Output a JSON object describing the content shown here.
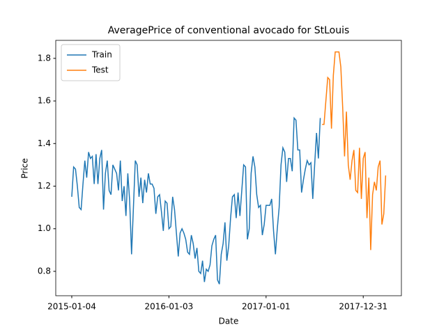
{
  "chart_data": {
    "type": "line",
    "title": "AveragePrice of conventional avocado for StLouis",
    "xlabel": "Date",
    "ylabel": "Price",
    "xlim": [
      "2014-11-05",
      "2018-05-23"
    ],
    "xticks": [
      "2015-01-04",
      "2016-01-03",
      "2017-01-01",
      "2017-12-31"
    ],
    "ylim": [
      0.6855,
      1.8845
    ],
    "yticks": [
      0.8,
      {
        "value": 1,
        "label": "1.0"
      },
      1.2,
      1.4,
      1.6,
      1.8
    ],
    "legend": "upper left",
    "series": [
      {
        "name": "Train",
        "color": "#1f77b4",
        "x": [
          "2015-01-04",
          "2015-01-11",
          "2015-01-18",
          "2015-01-25",
          "2015-02-01",
          "2015-02-08",
          "2015-02-15",
          "2015-02-22",
          "2015-03-01",
          "2015-03-08",
          "2015-03-15",
          "2015-03-22",
          "2015-03-29",
          "2015-04-05",
          "2015-04-12",
          "2015-04-19",
          "2015-04-26",
          "2015-05-03",
          "2015-05-10",
          "2015-05-17",
          "2015-05-24",
          "2015-05-31",
          "2015-06-07",
          "2015-06-14",
          "2015-06-21",
          "2015-06-28",
          "2015-07-05",
          "2015-07-12",
          "2015-07-19",
          "2015-07-26",
          "2015-08-02",
          "2015-08-09",
          "2015-08-16",
          "2015-08-23",
          "2015-08-30",
          "2015-09-06",
          "2015-09-13",
          "2015-09-20",
          "2015-09-27",
          "2015-10-04",
          "2015-10-11",
          "2015-10-18",
          "2015-10-25",
          "2015-11-01",
          "2015-11-08",
          "2015-11-15",
          "2015-11-22",
          "2015-11-29",
          "2015-12-06",
          "2015-12-13",
          "2015-12-20",
          "2015-12-27",
          "2016-01-03",
          "2016-01-10",
          "2016-01-17",
          "2016-01-24",
          "2016-01-31",
          "2016-02-07",
          "2016-02-14",
          "2016-02-21",
          "2016-02-28",
          "2016-03-06",
          "2016-03-13",
          "2016-03-20",
          "2016-03-27",
          "2016-04-03",
          "2016-04-10",
          "2016-04-17",
          "2016-04-24",
          "2016-05-01",
          "2016-05-08",
          "2016-05-15",
          "2016-05-22",
          "2016-05-29",
          "2016-06-05",
          "2016-06-12",
          "2016-06-19",
          "2016-06-26",
          "2016-07-03",
          "2016-07-10",
          "2016-07-17",
          "2016-07-24",
          "2016-07-31",
          "2016-08-07",
          "2016-08-14",
          "2016-08-21",
          "2016-08-28",
          "2016-09-04",
          "2016-09-11",
          "2016-09-18",
          "2016-09-25",
          "2016-10-02",
          "2016-10-09",
          "2016-10-16",
          "2016-10-23",
          "2016-10-30",
          "2016-11-06",
          "2016-11-13",
          "2016-11-20",
          "2016-11-27",
          "2016-12-04",
          "2016-12-11",
          "2016-12-18",
          "2016-12-25",
          "2017-01-01",
          "2017-01-08",
          "2017-01-15",
          "2017-01-22",
          "2017-01-29",
          "2017-02-05",
          "2017-02-12",
          "2017-02-19",
          "2017-02-26",
          "2017-03-05",
          "2017-03-12",
          "2017-03-19",
          "2017-03-26",
          "2017-04-02",
          "2017-04-09",
          "2017-04-16",
          "2017-04-23",
          "2017-04-30",
          "2017-05-07",
          "2017-05-14",
          "2017-05-21",
          "2017-05-28",
          "2017-06-04",
          "2017-06-11",
          "2017-06-18",
          "2017-06-25",
          "2017-07-02",
          "2017-07-09",
          "2017-07-16",
          "2017-07-23"
        ],
        "values": [
          1.15,
          1.29,
          1.28,
          1.2,
          1.1,
          1.09,
          1.21,
          1.32,
          1.24,
          1.36,
          1.33,
          1.34,
          1.21,
          1.35,
          1.21,
          1.33,
          1.37,
          1.09,
          1.26,
          1.32,
          1.18,
          1.16,
          1.3,
          1.28,
          1.26,
          1.18,
          1.32,
          1.13,
          1.2,
          1.06,
          1.26,
          1.13,
          0.88,
          1.1,
          1.32,
          1.3,
          1.15,
          1.24,
          1.12,
          1.23,
          1.17,
          1.26,
          1.21,
          1.21,
          1.19,
          1.07,
          1.15,
          1.16,
          1.08,
          0.99,
          1.13,
          1.12,
          1.0,
          1.01,
          1.15,
          1.09,
          0.98,
          0.87,
          0.98,
          1.0,
          0.98,
          0.95,
          0.89,
          0.88,
          0.97,
          0.93,
          0.86,
          0.91,
          0.8,
          0.79,
          0.85,
          0.75,
          0.81,
          0.8,
          0.83,
          0.92,
          0.95,
          0.97,
          0.76,
          0.74,
          0.88,
          0.93,
          1.03,
          0.85,
          0.92,
          1.05,
          1.15,
          1.16,
          1.05,
          1.17,
          1.06,
          1.18,
          1.3,
          1.29,
          0.95,
          1.0,
          1.26,
          1.34,
          1.29,
          1.16,
          1.1,
          1.11,
          0.97,
          1.02,
          1.11,
          1.11,
          1.11,
          1.14,
          0.99,
          0.88,
          1.0,
          1.1,
          1.3,
          1.38,
          1.36,
          1.22,
          1.33,
          1.33,
          1.27,
          1.52,
          1.51,
          1.37,
          1.37,
          1.17,
          1.23,
          1.28,
          1.32,
          1.3,
          1.31,
          1.14,
          1.3,
          1.45,
          1.33,
          1.52
        ]
      },
      {
        "name": "Test",
        "color": "#ff7f0e",
        "x": [
          "2017-07-30",
          "2017-08-06",
          "2017-08-13",
          "2017-08-20",
          "2017-08-27",
          "2017-09-03",
          "2017-09-10",
          "2017-09-17",
          "2017-09-24",
          "2017-10-01",
          "2017-10-08",
          "2017-10-15",
          "2017-10-22",
          "2017-10-29",
          "2017-11-05",
          "2017-11-12",
          "2017-11-19",
          "2017-11-26",
          "2017-12-03",
          "2017-12-10",
          "2017-12-17",
          "2017-12-24",
          "2017-12-31",
          "2018-01-07",
          "2018-01-14",
          "2018-01-21",
          "2018-01-28",
          "2018-02-04",
          "2018-02-11",
          "2018-02-18",
          "2018-02-25",
          "2018-03-04",
          "2018-03-11",
          "2018-03-18",
          "2018-03-25"
        ],
        "values": [
          1.49,
          1.49,
          1.6,
          1.71,
          1.7,
          1.47,
          1.72,
          1.83,
          1.83,
          1.83,
          1.76,
          1.57,
          1.34,
          1.55,
          1.3,
          1.23,
          1.32,
          1.37,
          1.18,
          1.17,
          1.38,
          1.14,
          1.33,
          1.36,
          1.05,
          1.24,
          0.9,
          1.16,
          1.22,
          1.18,
          1.29,
          1.32,
          1.02,
          1.07,
          1.25
        ]
      }
    ]
  }
}
